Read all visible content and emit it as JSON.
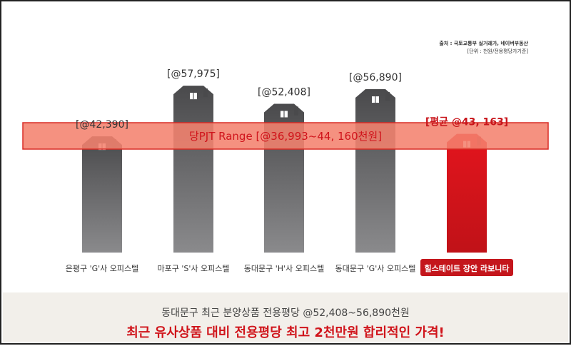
{
  "source": {
    "line1": "출처 : 국토교통부 실거래가, 네이버부동산",
    "line2": "[단위 : 천원/전용평당가기준]"
  },
  "range_band": {
    "label": "당PJT Range [@36,993~44, 160천원]"
  },
  "chart_data": {
    "type": "bar",
    "categories": [
      "은평구 'G'사 오피스텔",
      "마포구 'S'사 오피스텔",
      "동대문구 'H'사 오피스텔",
      "동대문구 'G'사 오피스텔",
      "힐스테이트 장안 라보니타"
    ],
    "values": [
      42390,
      57975,
      52408,
      56890,
      43163
    ],
    "value_labels": [
      "[@42,390]",
      "[@57,975]",
      "[@52,408]",
      "[@56,890]",
      "[평균 @43, 163]"
    ],
    "band": [
      36993,
      44160
    ],
    "highlight_index": 4,
    "colors": {
      "bar": "#5a5a5c",
      "highlight": "#d2121a",
      "band": "#f4826e",
      "band_border": "#d82b25",
      "highlight_label": "#c8141a",
      "highlight_badge": "#c4161c"
    }
  },
  "footer": {
    "line1": "동대문구 최근 분양상품 전용평당 @52,408~56,890천원",
    "line2": "최근 유사상품 대비 전용평당 최고 2천만원 합리적인 가격!"
  }
}
